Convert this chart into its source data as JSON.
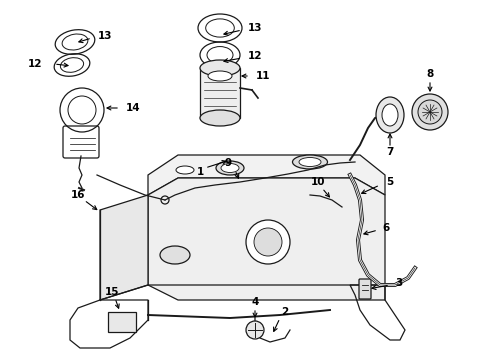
{
  "background_color": "#ffffff",
  "fig_width": 4.89,
  "fig_height": 3.6,
  "dpi": 100,
  "line_color": "#1a1a1a",
  "label_color": "#000000",
  "label_fontsize": 7.5,
  "lw": 0.9
}
